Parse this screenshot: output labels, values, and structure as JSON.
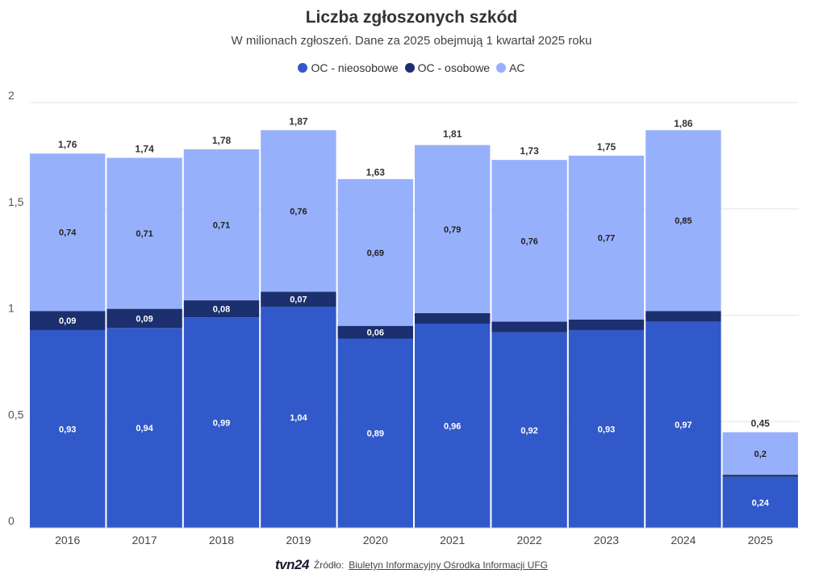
{
  "title": "Liczba zgłoszonych szkód",
  "subtitle": "W milionach zgłoszeń. Dane za 2025 obejmują 1 kwartał 2025 roku",
  "logo_text": "tvn24",
  "source_label": "Źródło:",
  "source_link": "Biuletyn Informacyjny Ośrodka Informacji UFG",
  "chart_data": {
    "type": "bar",
    "stacked": true,
    "categories": [
      "2016",
      "2017",
      "2018",
      "2019",
      "2020",
      "2021",
      "2022",
      "2023",
      "2024",
      "2025"
    ],
    "series": [
      {
        "name": "OC - nieosobowe",
        "color": "#3159c9",
        "values": [
          0.93,
          0.94,
          0.99,
          1.04,
          0.89,
          0.96,
          0.92,
          0.93,
          0.97,
          0.24
        ],
        "labels": [
          "0,93",
          "0,94",
          "0,99",
          "1,04",
          "0,89",
          "0,96",
          "0,92",
          "0,93",
          "0,97",
          "0,24"
        ]
      },
      {
        "name": "OC - osobowe",
        "color": "#1c2f6e",
        "values": [
          0.09,
          0.09,
          0.08,
          0.07,
          0.06,
          0.05,
          0.05,
          0.05,
          0.05,
          0.01
        ],
        "labels": [
          "0,09",
          "0,09",
          "0,08",
          "0,07",
          "0,06",
          "",
          "",
          "",
          "",
          ""
        ]
      },
      {
        "name": "AC",
        "color": "#97b0fb",
        "values": [
          0.74,
          0.71,
          0.71,
          0.76,
          0.69,
          0.79,
          0.76,
          0.77,
          0.85,
          0.2
        ],
        "labels": [
          "0,74",
          "0,71",
          "0,71",
          "0,76",
          "0,69",
          "0,79",
          "0,76",
          "0,77",
          "0,85",
          "0,2"
        ]
      }
    ],
    "totals": [
      1.76,
      1.74,
      1.78,
      1.87,
      1.63,
      1.81,
      1.73,
      1.75,
      1.86,
      0.45
    ],
    "total_labels": [
      "1,76",
      "1,74",
      "1,78",
      "1,87",
      "1,63",
      "1,81",
      "1,73",
      "1,75",
      "1,86",
      "0,45"
    ],
    "ylim": [
      0,
      2
    ],
    "yticks": [
      0,
      0.5,
      1,
      1.5,
      2
    ],
    "ytick_labels": [
      "0",
      "0,5",
      "1",
      "1,5",
      "2"
    ],
    "grid": true,
    "legend_position": "top-center"
  }
}
